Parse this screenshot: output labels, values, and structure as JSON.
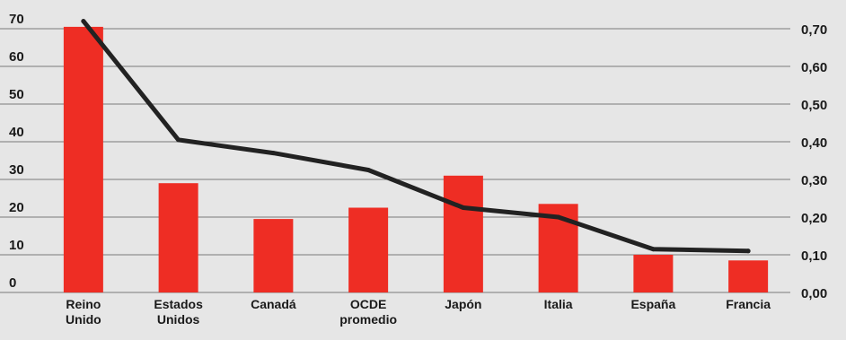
{
  "chart_data": {
    "type": "bar",
    "categories": [
      [
        "Reino",
        "Unido"
      ],
      [
        "Estados",
        "Unidos"
      ],
      [
        "Canadá"
      ],
      [
        "OCDE",
        "promedio"
      ],
      [
        "Japón"
      ],
      [
        "Italia"
      ],
      [
        "España"
      ],
      [
        "Francia"
      ]
    ],
    "series": [
      {
        "kind": "bar",
        "axis": "left",
        "color": "#ee2d24",
        "values": [
          70.5,
          29,
          19.5,
          22.5,
          31,
          23.5,
          10,
          8.5
        ]
      },
      {
        "kind": "line",
        "axis": "right",
        "color": "#222222",
        "values": [
          0.72,
          0.405,
          0.37,
          0.325,
          0.225,
          0.2,
          0.115,
          0.11
        ]
      }
    ],
    "y_left": {
      "ylim": [
        0,
        70
      ],
      "ticks": [
        "0",
        "10",
        "20",
        "30",
        "40",
        "50",
        "60",
        "70"
      ]
    },
    "y_right": {
      "ylim": [
        0,
        0.7
      ],
      "ticks": [
        "0,00",
        "0,10",
        "0,20",
        "0,30",
        "0,40",
        "0,50",
        "0,60",
        "0,70"
      ]
    },
    "grid": true,
    "colors": {
      "background": "#e6e6e6",
      "grid": "#7a7a7a",
      "bar": "#ee2d24",
      "line": "#222222"
    }
  }
}
